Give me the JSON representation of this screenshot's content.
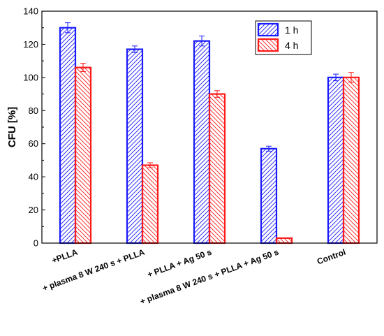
{
  "chart_data": {
    "type": "bar",
    "categories": [
      "+PLLA",
      "+ plasma 8 W 240 s + PLLA",
      "+ PLLA + Ag 50 s",
      "+ plasma 8 W 240 s + PLLA + Ag 50 s",
      "Control"
    ],
    "series": [
      {
        "name": "1 h",
        "values": [
          130,
          117,
          122,
          57,
          100
        ],
        "errors": [
          3,
          2,
          3,
          1.5,
          2
        ],
        "color": "#1a1aff",
        "hatch": "diagonal-up"
      },
      {
        "name": "4 h",
        "values": [
          106,
          47,
          90,
          3,
          100
        ],
        "errors": [
          2.5,
          1.5,
          2,
          0,
          3
        ],
        "color": "#ff1a1a",
        "hatch": "diagonal-down"
      }
    ],
    "ylabel": "CFU [%]",
    "xlabel": "",
    "ylim": [
      0,
      140
    ],
    "yticks": [
      "0",
      "20",
      "40",
      "60",
      "80",
      "100",
      "120",
      "140"
    ],
    "grid": false,
    "legend_position": "top-right"
  }
}
